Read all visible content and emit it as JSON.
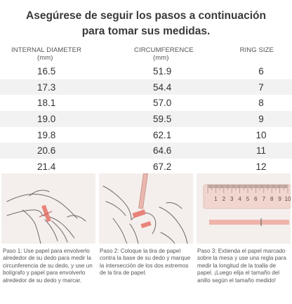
{
  "title": {
    "line1": "Asegúrese de seguir los pasos a continuación",
    "line2": "para tomar sus medidas."
  },
  "table": {
    "headers": {
      "internal_diameter": "INTERNAL DIAMETER",
      "internal_unit": "(mm)",
      "circumference": "CIRCUMFERENCE",
      "circumference_unit": "(mm)",
      "ring_size": "RING SIZE"
    },
    "rows": [
      {
        "diameter": "16.5",
        "circumference": "51.9",
        "size": "6"
      },
      {
        "diameter": "17.3",
        "circumference": "54.4",
        "size": "7"
      },
      {
        "diameter": "18.1",
        "circumference": "57.0",
        "size": "8"
      },
      {
        "diameter": "19.0",
        "circumference": "59.5",
        "size": "9"
      },
      {
        "diameter": "19.8",
        "circumference": "62.1",
        "size": "10"
      },
      {
        "diameter": "20.6",
        "circumference": "64.6",
        "size": "11"
      },
      {
        "diameter": "21.4",
        "circumference": "67.2",
        "size": "12"
      }
    ]
  },
  "ruler": {
    "numbers": [
      "1",
      "2",
      "3",
      "4",
      "5",
      "6",
      "7",
      "8",
      "9",
      "10"
    ]
  },
  "steps": [
    {
      "text": "Paso 1: Use papel para envolverlo alrededor de su dedo para medir la circunferencia de su dedo, y use un bolígrafo y papel para envolverlo alrededor de su dedo y marcar."
    },
    {
      "text": "Paso 2: Coloque la tira de papel contra la base de su dedo y marque la intersección de los dos extremos de la tira de papel."
    },
    {
      "text": "Paso 3: Extienda el papel marcado sobre la mesa y use una regla para medir la longitud de la toalla de papel. ¡Luego elija el tamaño del anillo según el tamaño medido!"
    }
  ],
  "colors": {
    "panel_bg": "#f4efec",
    "accent": "#e8837a",
    "ruler": "#f1d6cf",
    "row_shade": "#f2f2f2"
  }
}
